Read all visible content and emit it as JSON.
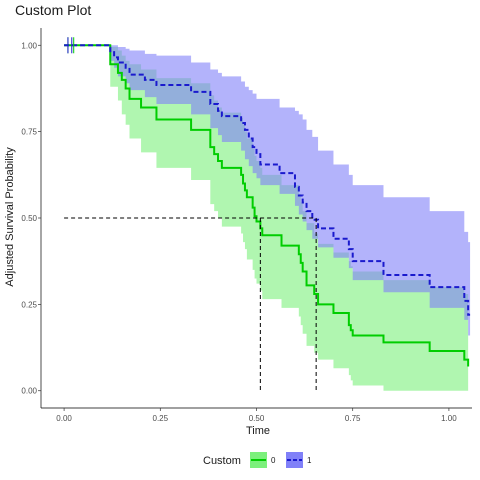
{
  "chart_data": {
    "type": "line",
    "subtype": "kaplan-meier adjusted survival curves with confidence bands",
    "title": "Custom Plot",
    "xlabel": "Time",
    "ylabel": "Adjusted Survival Probability",
    "xlim": [
      -0.06,
      1.06
    ],
    "ylim": [
      -0.05,
      1.05
    ],
    "x_ticks": [
      0.0,
      0.25,
      0.5,
      0.75,
      1.0
    ],
    "x_tick_labels": [
      "0.00",
      "0.25",
      "0.50",
      "0.75",
      "1.00"
    ],
    "y_ticks": [
      0.0,
      0.25,
      0.5,
      0.75,
      1.0
    ],
    "y_tick_labels": [
      "0.00",
      "0.25",
      "0.50",
      "0.75",
      "1.00"
    ],
    "median_reference": {
      "y": 0.5,
      "medians": [
        {
          "group": "0",
          "x": 0.51
        },
        {
          "group": "1",
          "x": 0.655
        }
      ]
    },
    "legend": {
      "title": "Custom",
      "position": "bottom",
      "entries": [
        {
          "label": "0",
          "color": "#00cd00",
          "band_color": "#7cf07c",
          "linestyle": "solid"
        },
        {
          "label": "1",
          "color": "#1a1acd",
          "band_color": "#8080f8",
          "linestyle": "dashed"
        }
      ]
    },
    "series": [
      {
        "name": "0",
        "color": "#00cd00",
        "band_color": "#7cf07c",
        "linestyle": "solid",
        "censor_marks": [
          0.01,
          0.025
        ],
        "steps": [
          [
            0.0,
            1.0,
            1.0,
            1.0
          ],
          [
            0.12,
            0.945,
            0.88,
            0.995
          ],
          [
            0.14,
            0.92,
            0.84,
            0.985
          ],
          [
            0.15,
            0.9,
            0.8,
            0.97
          ],
          [
            0.16,
            0.875,
            0.77,
            0.955
          ],
          [
            0.17,
            0.845,
            0.73,
            0.945
          ],
          [
            0.2,
            0.82,
            0.69,
            0.93
          ],
          [
            0.24,
            0.785,
            0.645,
            0.905
          ],
          [
            0.33,
            0.755,
            0.61,
            0.89
          ],
          [
            0.38,
            0.705,
            0.54,
            0.855
          ],
          [
            0.39,
            0.685,
            0.52,
            0.84
          ],
          [
            0.4,
            0.665,
            0.5,
            0.82
          ],
          [
            0.41,
            0.645,
            0.475,
            0.805
          ],
          [
            0.46,
            0.625,
            0.455,
            0.79
          ],
          [
            0.465,
            0.6,
            0.43,
            0.77
          ],
          [
            0.47,
            0.58,
            0.41,
            0.75
          ],
          [
            0.475,
            0.56,
            0.38,
            0.73
          ],
          [
            0.49,
            0.53,
            0.35,
            0.7
          ],
          [
            0.495,
            0.505,
            0.325,
            0.68
          ],
          [
            0.5,
            0.49,
            0.31,
            0.665
          ],
          [
            0.51,
            0.47,
            0.29,
            0.645
          ],
          [
            0.515,
            0.45,
            0.265,
            0.625
          ],
          [
            0.565,
            0.42,
            0.24,
            0.595
          ],
          [
            0.61,
            0.395,
            0.215,
            0.57
          ],
          [
            0.615,
            0.37,
            0.19,
            0.545
          ],
          [
            0.62,
            0.345,
            0.165,
            0.52
          ],
          [
            0.63,
            0.305,
            0.13,
            0.485
          ],
          [
            0.65,
            0.28,
            0.11,
            0.455
          ],
          [
            0.66,
            0.25,
            0.09,
            0.425
          ],
          [
            0.7,
            0.225,
            0.065,
            0.4
          ],
          [
            0.74,
            0.19,
            0.045,
            0.375
          ],
          [
            0.745,
            0.175,
            0.03,
            0.36
          ],
          [
            0.75,
            0.16,
            0.015,
            0.345
          ],
          [
            0.83,
            0.14,
            0.0,
            0.32
          ],
          [
            0.95,
            0.115,
            0.0,
            0.3
          ],
          [
            1.04,
            0.09,
            0.0,
            0.28
          ],
          [
            1.05,
            0.07,
            0.0,
            0.26
          ]
        ],
        "end_x": 1.05
      },
      {
        "name": "1",
        "color": "#1a1acd",
        "band_color": "#8080f8",
        "linestyle": "dashed",
        "censor_marks": [
          0.01,
          0.02
        ],
        "steps": [
          [
            0.0,
            1.0,
            1.0,
            1.0
          ],
          [
            0.12,
            0.98,
            0.955,
            1.0
          ],
          [
            0.13,
            0.965,
            0.935,
            1.0
          ],
          [
            0.14,
            0.95,
            0.91,
            0.995
          ],
          [
            0.16,
            0.935,
            0.89,
            0.99
          ],
          [
            0.17,
            0.915,
            0.87,
            0.985
          ],
          [
            0.21,
            0.9,
            0.85,
            0.975
          ],
          [
            0.24,
            0.885,
            0.83,
            0.97
          ],
          [
            0.33,
            0.865,
            0.8,
            0.95
          ],
          [
            0.38,
            0.83,
            0.76,
            0.93
          ],
          [
            0.4,
            0.81,
            0.74,
            0.92
          ],
          [
            0.41,
            0.795,
            0.72,
            0.91
          ],
          [
            0.46,
            0.775,
            0.695,
            0.895
          ],
          [
            0.47,
            0.755,
            0.67,
            0.88
          ],
          [
            0.48,
            0.73,
            0.65,
            0.87
          ],
          [
            0.49,
            0.705,
            0.63,
            0.86
          ],
          [
            0.5,
            0.685,
            0.615,
            0.845
          ],
          [
            0.51,
            0.655,
            0.595,
            0.845
          ],
          [
            0.56,
            0.63,
            0.57,
            0.82
          ],
          [
            0.6,
            0.59,
            0.535,
            0.81
          ],
          [
            0.61,
            0.565,
            0.51,
            0.8
          ],
          [
            0.62,
            0.545,
            0.49,
            0.785
          ],
          [
            0.63,
            0.52,
            0.465,
            0.755
          ],
          [
            0.645,
            0.495,
            0.44,
            0.735
          ],
          [
            0.66,
            0.47,
            0.415,
            0.695
          ],
          [
            0.7,
            0.44,
            0.385,
            0.655
          ],
          [
            0.74,
            0.41,
            0.355,
            0.625
          ],
          [
            0.75,
            0.375,
            0.32,
            0.595
          ],
          [
            0.83,
            0.335,
            0.285,
            0.56
          ],
          [
            0.95,
            0.3,
            0.24,
            0.52
          ],
          [
            1.04,
            0.26,
            0.205,
            0.46
          ],
          [
            1.05,
            0.22,
            0.16,
            0.43
          ]
        ],
        "end_x": 1.055
      }
    ]
  }
}
